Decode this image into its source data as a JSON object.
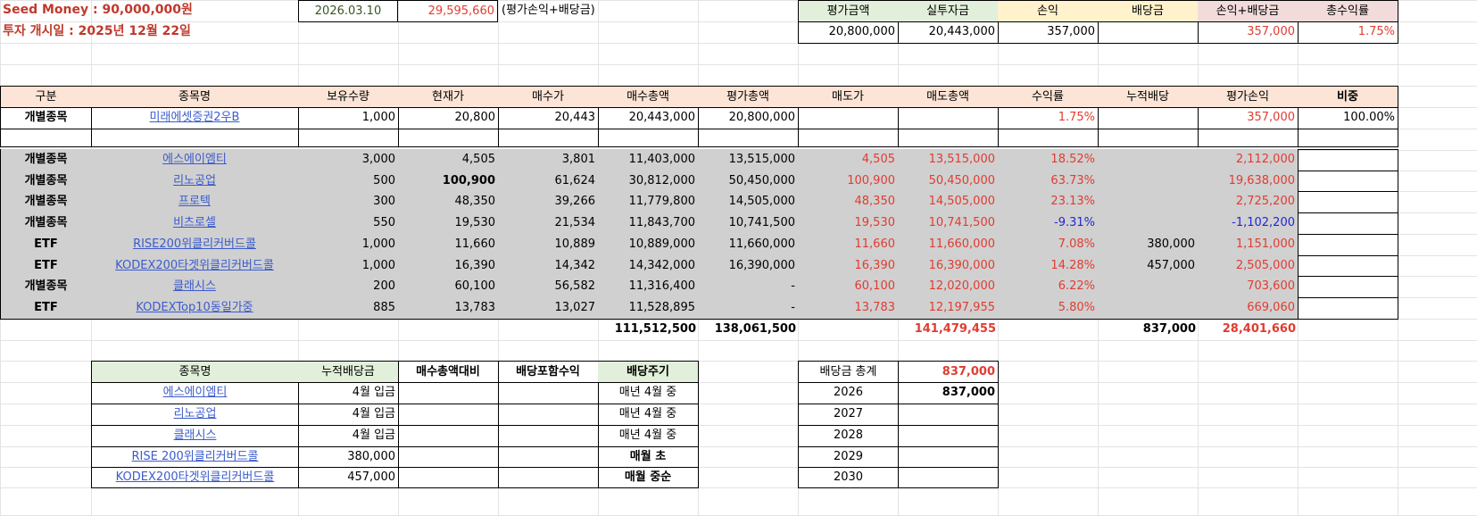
{
  "summary": {
    "seed_money": "Seed Money : 90,000,000원",
    "start_date": "투자 개시일 : 2025년 12월 22일",
    "date": "2026.03.10",
    "profit": "29,595,660",
    "profit_note": "(평가손익+배당금)"
  },
  "topbox": {
    "headers": [
      "평가금액",
      "실투자금",
      "손익",
      "배당금",
      "손익+배당금",
      "총수익률"
    ],
    "values": [
      "20,800,000",
      "20,443,000",
      "357,000",
      "",
      "357,000",
      "1.75%"
    ]
  },
  "main_table": {
    "headers": [
      "구분",
      "종목명",
      "보유수량",
      "현재가",
      "매수가",
      "매수총액",
      "평가총액",
      "매도가",
      "매도총액",
      "수익률",
      "누적배당",
      "평가손익",
      "비중"
    ],
    "top_row": [
      "개별종목",
      "미래에셋증권2우B",
      "1,000",
      "20,800",
      "20,443",
      "20,443,000",
      "20,800,000",
      "",
      "",
      "1.75%",
      "",
      "357,000",
      "100.00%"
    ],
    "rows": [
      [
        "개별종목",
        "에스에이엠티",
        "3,000",
        "4,505",
        "3,801",
        "11,403,000",
        "13,515,000",
        "4,505",
        "13,515,000",
        "18.52%",
        "",
        "2,112,000",
        ""
      ],
      [
        "개별종목",
        "리노공업",
        "500",
        "100,900",
        "61,624",
        "30,812,000",
        "50,450,000",
        "100,900",
        "50,450,000",
        "63.73%",
        "",
        "19,638,000",
        ""
      ],
      [
        "개별종목",
        "프로텍",
        "300",
        "48,350",
        "39,266",
        "11,779,800",
        "14,505,000",
        "48,350",
        "14,505,000",
        "23.13%",
        "",
        "2,725,200",
        ""
      ],
      [
        "개별종목",
        "비츠로셀",
        "550",
        "19,530",
        "21,534",
        "11,843,700",
        "10,741,500",
        "19,530",
        "10,741,500",
        "-9.31%",
        "",
        "-1,102,200",
        ""
      ],
      [
        "ETF",
        "RISE200위클리커버드콜",
        "1,000",
        "11,660",
        "10,889",
        "10,889,000",
        "11,660,000",
        "11,660",
        "11,660,000",
        "7.08%",
        "380,000",
        "1,151,000",
        ""
      ],
      [
        "ETF",
        "KODEX200타겟위클리커버드콜",
        "1,000",
        "16,390",
        "14,342",
        "14,342,000",
        "16,390,000",
        "16,390",
        "16,390,000",
        "14.28%",
        "457,000",
        "2,505,000",
        ""
      ],
      [
        "개별종목",
        "클래시스",
        "200",
        "60,100",
        "56,582",
        "11,316,400",
        "-",
        "60,100",
        "12,020,000",
        "6.22%",
        "",
        "703,600",
        ""
      ],
      [
        "ETF",
        "KODEXTop10동일가중",
        "885",
        "13,783",
        "13,027",
        "11,528,895",
        "-",
        "13,783",
        "12,197,955",
        "5.80%",
        "",
        "669,060",
        ""
      ]
    ],
    "totals": [
      "",
      "",
      "",
      "",
      "",
      "111,512,500",
      "138,061,500",
      "",
      "141,479,455",
      "",
      "837,000",
      "28,401,660",
      ""
    ]
  },
  "div_table": {
    "headers": [
      "종목명",
      "누적배당금",
      "매수총액대비",
      "배당포함수익",
      "배당주기"
    ],
    "rows": [
      [
        "에스에이엠티",
        "4월 입금",
        "",
        "",
        "매년 4월 중"
      ],
      [
        "리노공업",
        "4월 입금",
        "",
        "",
        "매년 4월 중"
      ],
      [
        "클래시스",
        "4월 입금",
        "",
        "",
        "매년 4월 중"
      ],
      [
        "RISE 200위클리커버드콜",
        "380,000",
        "",
        "",
        "매월 초"
      ],
      [
        "KODEX200타겟위클리커버드콜",
        "457,000",
        "",
        "",
        "매월 중순"
      ]
    ]
  },
  "year_table": {
    "header": [
      "배당금 총계",
      "837,000"
    ],
    "rows": [
      [
        "2026",
        "837,000"
      ],
      [
        "2027",
        ""
      ],
      [
        "2028",
        ""
      ],
      [
        "2029",
        ""
      ],
      [
        "2030",
        ""
      ]
    ]
  }
}
